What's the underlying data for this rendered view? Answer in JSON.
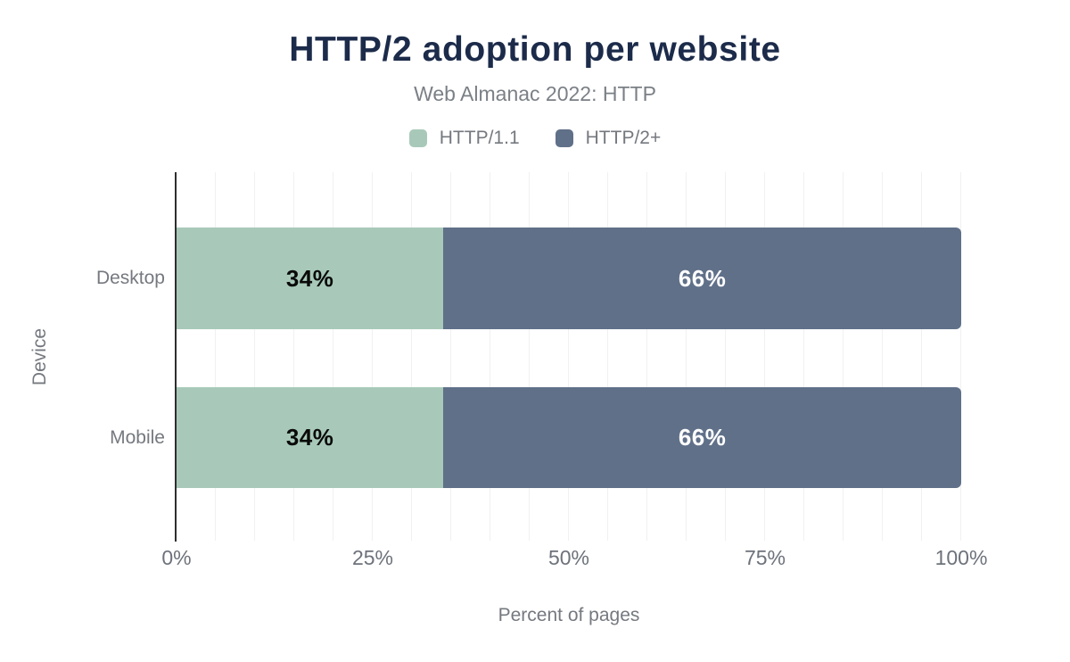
{
  "chart_data": {
    "type": "bar",
    "orientation": "horizontal",
    "stacked": true,
    "title": "HTTP/2 adoption per website",
    "subtitle": "Web Almanac 2022: HTTP",
    "categories": [
      "Desktop",
      "Mobile"
    ],
    "series": [
      {
        "name": "HTTP/1.1",
        "color": "#a8c9b9",
        "label_color": "#0a0a0a",
        "values": [
          34,
          34
        ],
        "labels": [
          "34%",
          "34%"
        ]
      },
      {
        "name": "HTTP/2+",
        "color": "#607089",
        "label_color": "#ffffff",
        "values": [
          66,
          66
        ],
        "labels": [
          "66%",
          "66%"
        ]
      }
    ],
    "xlabel": "Percent of pages",
    "ylabel": "Device",
    "xlim": [
      0,
      100
    ],
    "xticks": [
      "0%",
      "25%",
      "50%",
      "75%",
      "100%"
    ],
    "grid": {
      "axis": "x",
      "interval_percent": 5,
      "color": "#f1f1f1"
    },
    "legend_position": "top"
  },
  "colors": {
    "title": "#1c2b4a",
    "subtitle": "#7b8086",
    "axis_text": "#75797f",
    "tick_text": "#6d727b",
    "axis_line": "#2e2e2e",
    "background": "#ffffff"
  }
}
